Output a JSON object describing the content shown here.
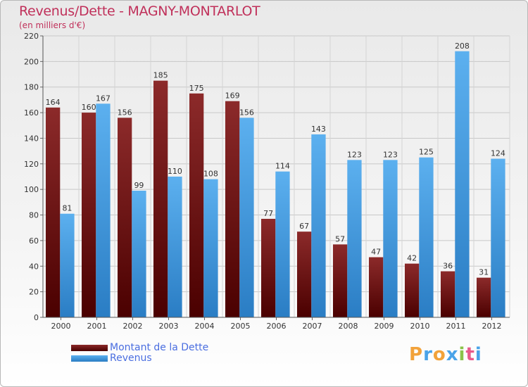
{
  "title": "Revenus/Dette - MAGNY-MONTARLOT",
  "subtitle": "(en milliers d'€)",
  "logo_text": "Proxiti",
  "colors": {
    "dette": "#7a1a1a",
    "revenus": "#4aa3e8",
    "title": "#c0305a",
    "legend_text": "#4a6ee0"
  },
  "legend": [
    {
      "label": "Montant de la Dette"
    },
    {
      "label": "Revenus"
    }
  ],
  "chart_data": {
    "type": "bar",
    "title": "Revenus/Dette - MAGNY-MONTARLOT",
    "ylabel": "(en milliers d'€)",
    "ylim": [
      0,
      220
    ],
    "yticks": [
      0,
      20,
      40,
      60,
      80,
      100,
      120,
      140,
      160,
      180,
      200,
      220
    ],
    "grid": true,
    "legend_position": "bottom-left",
    "categories": [
      "2000",
      "2001",
      "2002",
      "2003",
      "2004",
      "2005",
      "2006",
      "2007",
      "2008",
      "2009",
      "2010",
      "2011",
      "2012"
    ],
    "series": [
      {
        "name": "Montant de la Dette",
        "values": [
          164,
          160,
          156,
          185,
          175,
          169,
          77,
          67,
          57,
          47,
          42,
          36,
          31
        ]
      },
      {
        "name": "Revenus",
        "values": [
          81,
          167,
          99,
          110,
          108,
          156,
          114,
          143,
          123,
          123,
          125,
          208,
          124
        ]
      }
    ]
  }
}
